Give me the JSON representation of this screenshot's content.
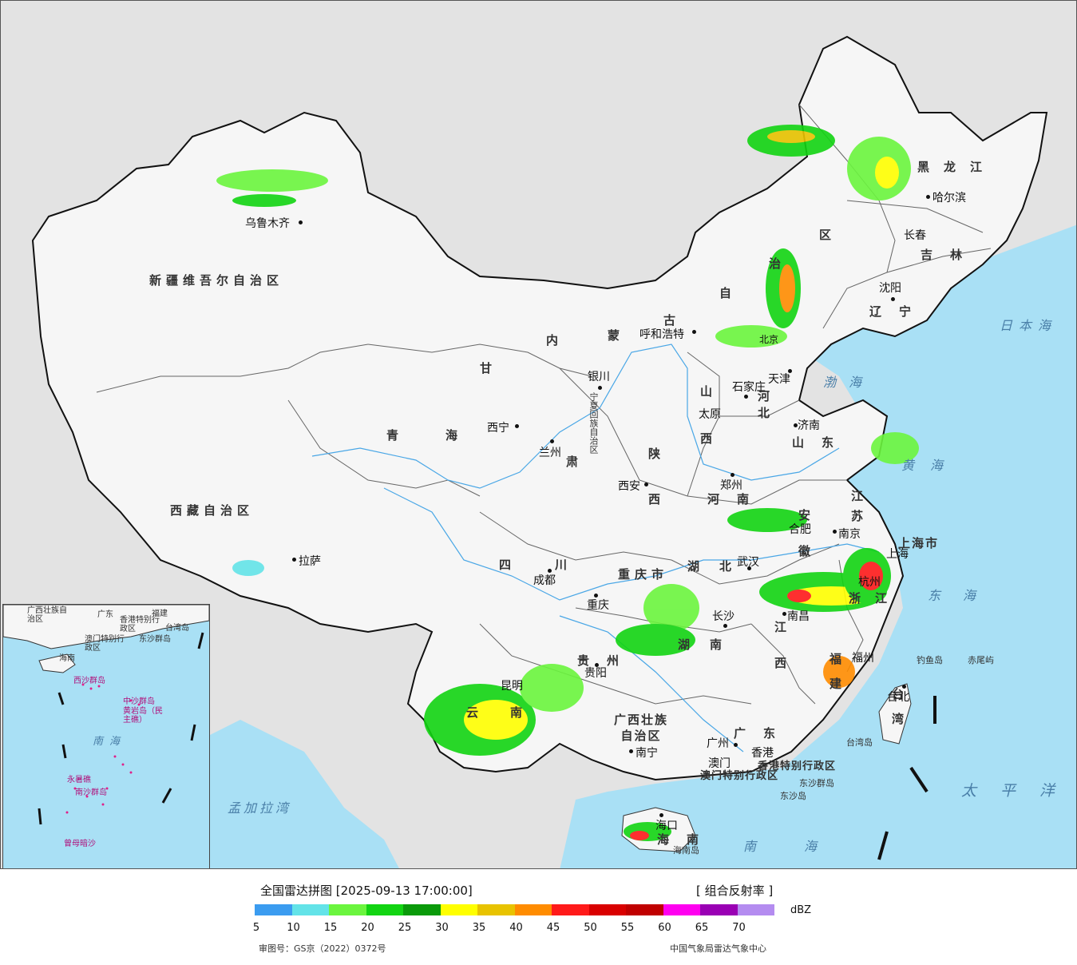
{
  "map": {
    "provinces": [
      {
        "id": "xinjiang",
        "text": "新疆维吾尔自治区"
      },
      {
        "id": "xizang",
        "text": "西藏自治区"
      },
      {
        "id": "qinghai1",
        "text": "青"
      },
      {
        "id": "qinghai2",
        "text": "海"
      },
      {
        "id": "gansu1",
        "text": "甘"
      },
      {
        "id": "gansu2",
        "text": "肃"
      },
      {
        "id": "neimenggu1",
        "text": "内"
      },
      {
        "id": "neimenggu2",
        "text": "蒙"
      },
      {
        "id": "neimenggu3",
        "text": "古"
      },
      {
        "id": "neimenggu4",
        "text": "自"
      },
      {
        "id": "neimenggu5",
        "text": "治"
      },
      {
        "id": "neimenggu6",
        "text": "区"
      },
      {
        "id": "heilongjiang",
        "text": "黑龙江"
      },
      {
        "id": "jilin",
        "text": "吉林"
      },
      {
        "id": "liaoning",
        "text": "辽宁"
      },
      {
        "id": "hebei",
        "text": "河北"
      },
      {
        "id": "shanxi1",
        "text": "山"
      },
      {
        "id": "shanxi2",
        "text": "西"
      },
      {
        "id": "shandong",
        "text": "山东"
      },
      {
        "id": "henan",
        "text": "河南"
      },
      {
        "id": "shaanxi1",
        "text": "陕"
      },
      {
        "id": "shaanxi2",
        "text": "西"
      },
      {
        "id": "ningxia",
        "text": "宁夏回族自治区"
      },
      {
        "id": "sichuan",
        "text": "四川"
      },
      {
        "id": "chongqing",
        "text": "重庆市"
      },
      {
        "id": "hubei",
        "text": "湖北"
      },
      {
        "id": "hunan",
        "text": "湖南"
      },
      {
        "id": "anhui",
        "text": "安徽"
      },
      {
        "id": "jiangsu",
        "text": "江苏"
      },
      {
        "id": "shanghai",
        "text": "上海市"
      },
      {
        "id": "zhejiang",
        "text": "浙江"
      },
      {
        "id": "jiangxi",
        "text": "江西"
      },
      {
        "id": "fujian",
        "text": "福建"
      },
      {
        "id": "guizhou",
        "text": "贵州"
      },
      {
        "id": "yunnan",
        "text": "云南"
      },
      {
        "id": "guangxi",
        "text": "广西壮族自治区"
      },
      {
        "id": "guangdong",
        "text": "广东"
      },
      {
        "id": "hainan",
        "text": "海南"
      },
      {
        "id": "taiwan",
        "text": "台湾"
      },
      {
        "id": "hk",
        "text": "香港特别行政区"
      },
      {
        "id": "macau",
        "text": "澳门特别行政区"
      }
    ],
    "cities": [
      {
        "id": "urumqi",
        "text": "乌鲁木齐"
      },
      {
        "id": "lhasa",
        "text": "拉萨"
      },
      {
        "id": "xining",
        "text": "西宁"
      },
      {
        "id": "lanzhou",
        "text": "兰州"
      },
      {
        "id": "yinchuan",
        "text": "银川"
      },
      {
        "id": "hohhot",
        "text": "呼和浩特"
      },
      {
        "id": "beijing",
        "text": "北京"
      },
      {
        "id": "tianjin",
        "text": "天津"
      },
      {
        "id": "shijiazhuang",
        "text": "石家庄"
      },
      {
        "id": "taiyuan",
        "text": "太原"
      },
      {
        "id": "jinan",
        "text": "济南"
      },
      {
        "id": "zhengzhou",
        "text": "郑州"
      },
      {
        "id": "xian",
        "text": "西安"
      },
      {
        "id": "chengdu",
        "text": "成都"
      },
      {
        "id": "chongqing_c",
        "text": "重庆"
      },
      {
        "id": "wuhan",
        "text": "武汉"
      },
      {
        "id": "hefei",
        "text": "合肥"
      },
      {
        "id": "nanjing",
        "text": "南京"
      },
      {
        "id": "shanghai_c",
        "text": "上海"
      },
      {
        "id": "hangzhou",
        "text": "杭州"
      },
      {
        "id": "nanchang",
        "text": "南昌"
      },
      {
        "id": "changsha",
        "text": "长沙"
      },
      {
        "id": "fuzhou",
        "text": "福州"
      },
      {
        "id": "guiyang",
        "text": "贵阳"
      },
      {
        "id": "kunming",
        "text": "昆明"
      },
      {
        "id": "nanning",
        "text": "南宁"
      },
      {
        "id": "guangzhou",
        "text": "广州"
      },
      {
        "id": "hongkong",
        "text": "香港"
      },
      {
        "id": "macau_c",
        "text": "澳门"
      },
      {
        "id": "haikou",
        "text": "海口"
      },
      {
        "id": "taipei",
        "text": "台北"
      },
      {
        "id": "shenyang",
        "text": "沈阳"
      },
      {
        "id": "changchun",
        "text": "长春"
      },
      {
        "id": "harbin",
        "text": "哈尔滨"
      }
    ],
    "seas": [
      {
        "id": "japan_sea",
        "text": "日本海"
      },
      {
        "id": "bohai",
        "text": "渤海"
      },
      {
        "id": "huanghai",
        "text": "黄海"
      },
      {
        "id": "donghai",
        "text": "东海"
      },
      {
        "id": "nanhai",
        "text": "南海"
      },
      {
        "id": "pacific",
        "text": "太平洋"
      },
      {
        "id": "bengal",
        "text": "孟加拉湾"
      }
    ],
    "islands": [
      {
        "id": "diaoyu",
        "text": "钓鱼岛"
      },
      {
        "id": "chiwei",
        "text": "赤尾屿"
      },
      {
        "id": "taiwan_island",
        "text": "台湾岛"
      },
      {
        "id": "dongsha_group",
        "text": "东沙群岛"
      },
      {
        "id": "dongsha_island",
        "text": "东沙岛"
      },
      {
        "id": "hainan_island",
        "text": "海南岛"
      }
    ],
    "inset": {
      "labels": [
        {
          "id": "i_guangxi",
          "text": "广西壮族自治区"
        },
        {
          "id": "i_guangdong",
          "text": "广东"
        },
        {
          "id": "i_fujian",
          "text": "福建"
        },
        {
          "id": "i_taiwan",
          "text": "台湾岛"
        },
        {
          "id": "i_hk",
          "text": "香港特别行政区"
        },
        {
          "id": "i_macau",
          "text": "澳门特别行政区"
        },
        {
          "id": "i_dongsha",
          "text": "东沙群岛"
        },
        {
          "id": "i_hainan",
          "text": "海南"
        },
        {
          "id": "i_xisha",
          "text": "西沙群岛"
        },
        {
          "id": "i_zhongsha",
          "text": "中沙群岛"
        },
        {
          "id": "i_huangyan",
          "text": "黄岩岛（民主礁）"
        },
        {
          "id": "i_nanhai",
          "text": "南海"
        },
        {
          "id": "i_yongshu",
          "text": "永暑礁"
        },
        {
          "id": "i_nansha",
          "text": "南沙群岛"
        },
        {
          "id": "i_zengmu",
          "text": "曾母暗沙"
        }
      ]
    }
  },
  "legend": {
    "title": "全国雷达拼图 [2025-09-13 17:00:00]",
    "product": "[ 组合反射率 ]",
    "unit": "dBZ",
    "ticks": [
      "5",
      "10",
      "15",
      "20",
      "25",
      "30",
      "35",
      "40",
      "45",
      "50",
      "55",
      "60",
      "65",
      "70"
    ],
    "colors": [
      "#3b9cf0",
      "#63e3e8",
      "#6bf53e",
      "#12d412",
      "#0a9a0a",
      "#ffff00",
      "#e8c300",
      "#ff8c00",
      "#ff1a1a",
      "#d90000",
      "#c00000",
      "#ff00f0",
      "#9a00b4",
      "#b48cf0"
    ],
    "review_no": "审图号：GS京（2022）0372号",
    "agency": "中国气象局雷达气象中心"
  }
}
